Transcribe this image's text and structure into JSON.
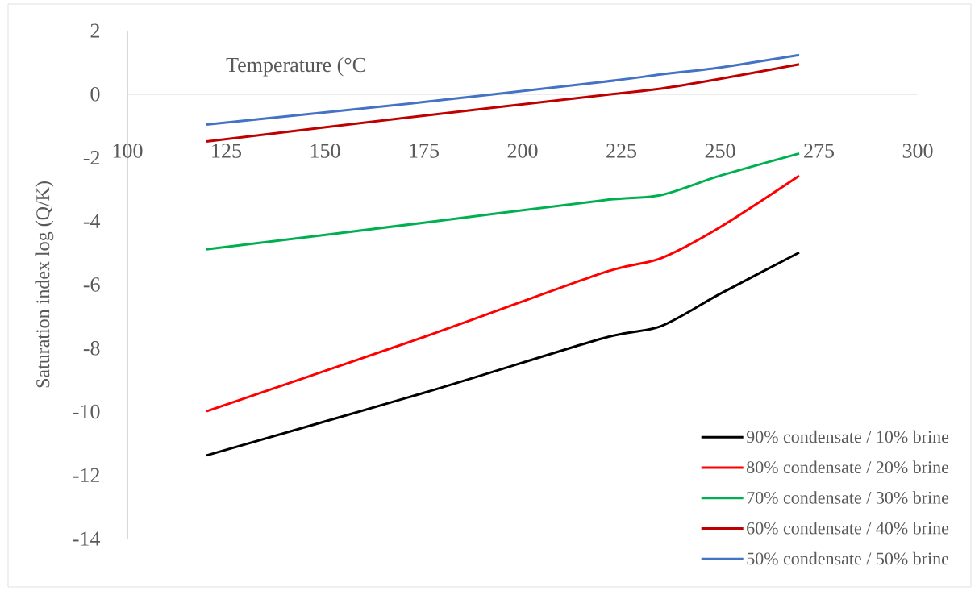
{
  "chart_data": {
    "type": "line",
    "xlabel": "Temperature (°C",
    "ylabel": "Saturation index log (Q/K)",
    "x": [
      120,
      175,
      220,
      235,
      250,
      270
    ],
    "series": [
      {
        "name": "90% condensate / 10% brine",
        "color": "#000000",
        "values": [
          -11.38,
          -9.41,
          -7.7,
          -7.31,
          -6.29,
          -4.99
        ]
      },
      {
        "name": "80% condensate / 20% brine",
        "color": "#ff0000",
        "values": [
          -9.99,
          -7.65,
          -5.64,
          -5.17,
          -4.19,
          -2.57
        ]
      },
      {
        "name": "70% condensate / 30% brine",
        "color": "#00b050",
        "values": [
          -4.89,
          -4.05,
          -3.35,
          -3.18,
          -2.57,
          -1.87
        ]
      },
      {
        "name": "60% condensate / 40% brine",
        "color": "#c00000",
        "values": [
          -1.49,
          -0.68,
          -0.04,
          0.17,
          0.48,
          0.94
        ]
      },
      {
        "name": "50% condensate / 50% brine",
        "color": "#4472c4",
        "values": [
          -0.96,
          -0.25,
          0.38,
          0.62,
          0.84,
          1.23
        ]
      }
    ],
    "xlim": [
      100,
      300
    ],
    "ylim": [
      -14,
      2
    ],
    "xticks": [
      100,
      125,
      150,
      175,
      200,
      225,
      250,
      275,
      300
    ],
    "yticks": [
      -14,
      -12,
      -10,
      -8,
      -6,
      -4,
      -2,
      0,
      2
    ],
    "grid": false,
    "legend": "bottom right",
    "marker": "none",
    "line_style": "solid"
  }
}
